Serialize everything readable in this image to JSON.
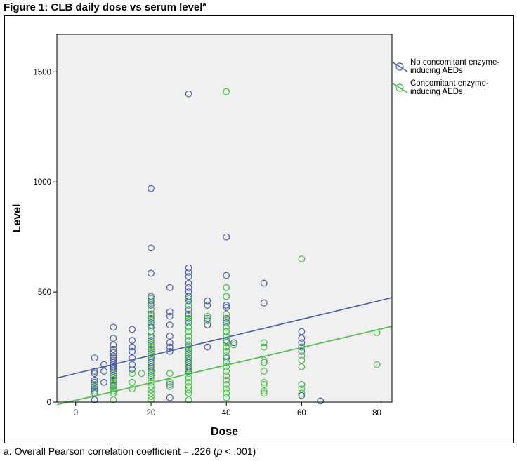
{
  "figure": {
    "title": "Figure 1: CLB daily dose vs serum level",
    "title_sup": "a",
    "footnote_prefix": "a. Overall Pearson correlation coefficient = .226 (",
    "footnote_p": "p",
    "footnote_suffix": " < .001)"
  },
  "colors": {
    "series1": "#4a5fa5",
    "series2": "#4cbb4c",
    "plot_bg": "#f0f0f0"
  },
  "chart_data": {
    "type": "scatter",
    "title": "Figure 1: CLB daily dose vs serum level",
    "xlabel": "Dose",
    "ylabel": "Level",
    "xlim": [
      -5,
      84
    ],
    "ylim": [
      0,
      1670
    ],
    "xticks": [
      0,
      20,
      40,
      60,
      80
    ],
    "yticks": [
      0,
      500,
      1000,
      1500
    ],
    "legend_position": "right",
    "series": [
      {
        "name": "No concomitant enzyme-inducing AEDs",
        "legend_lines": [
          "No concomitant enzyme-",
          "inducing AEDs"
        ],
        "color": "#4a5fa5",
        "fit_line": {
          "intercept": 130,
          "slope": 4.1
        },
        "points": [
          [
            5,
            200
          ],
          [
            5,
            140
          ],
          [
            5,
            130
          ],
          [
            5,
            100
          ],
          [
            5,
            90
          ],
          [
            5,
            80
          ],
          [
            5,
            70
          ],
          [
            5,
            60
          ],
          [
            5,
            50
          ],
          [
            5,
            40
          ],
          [
            5,
            10
          ],
          [
            7.5,
            170
          ],
          [
            7.5,
            140
          ],
          [
            7.5,
            90
          ],
          [
            10,
            340
          ],
          [
            10,
            290
          ],
          [
            10,
            260
          ],
          [
            10,
            240
          ],
          [
            10,
            225
          ],
          [
            10,
            210
          ],
          [
            10,
            200
          ],
          [
            10,
            190
          ],
          [
            10,
            180
          ],
          [
            10,
            170
          ],
          [
            10,
            160
          ],
          [
            10,
            150
          ],
          [
            10,
            140
          ],
          [
            10,
            130
          ],
          [
            10,
            120
          ],
          [
            10,
            110
          ],
          [
            10,
            100
          ],
          [
            10,
            90
          ],
          [
            10,
            75
          ],
          [
            10,
            60
          ],
          [
            15,
            330
          ],
          [
            15,
            280
          ],
          [
            15,
            250
          ],
          [
            15,
            230
          ],
          [
            15,
            200
          ],
          [
            15,
            170
          ],
          [
            15,
            150
          ],
          [
            20,
            970
          ],
          [
            20,
            700
          ],
          [
            20,
            585
          ],
          [
            20,
            480
          ],
          [
            20,
            460
          ],
          [
            20,
            440
          ],
          [
            20,
            420
          ],
          [
            20,
            400
          ],
          [
            20,
            380
          ],
          [
            20,
            360
          ],
          [
            20,
            340
          ],
          [
            20,
            320
          ],
          [
            20,
            300
          ],
          [
            20,
            280
          ],
          [
            20,
            260
          ],
          [
            20,
            240
          ],
          [
            20,
            220
          ],
          [
            20,
            200
          ],
          [
            20,
            180
          ],
          [
            20,
            160
          ],
          [
            20,
            140
          ],
          [
            20,
            120
          ],
          [
            25,
            520
          ],
          [
            25,
            410
          ],
          [
            25,
            390
          ],
          [
            25,
            350
          ],
          [
            25,
            300
          ],
          [
            25,
            270
          ],
          [
            25,
            250
          ],
          [
            25,
            230
          ],
          [
            25,
            80
          ],
          [
            25,
            20
          ],
          [
            30,
            1400
          ],
          [
            30,
            610
          ],
          [
            30,
            590
          ],
          [
            30,
            570
          ],
          [
            30,
            540
          ],
          [
            30,
            520
          ],
          [
            30,
            500
          ],
          [
            30,
            480
          ],
          [
            30,
            460
          ],
          [
            30,
            440
          ],
          [
            30,
            420
          ],
          [
            30,
            400
          ],
          [
            30,
            380
          ],
          [
            30,
            360
          ],
          [
            30,
            340
          ],
          [
            30,
            320
          ],
          [
            30,
            300
          ],
          [
            30,
            280
          ],
          [
            30,
            260
          ],
          [
            30,
            240
          ],
          [
            30,
            220
          ],
          [
            30,
            200
          ],
          [
            30,
            180
          ],
          [
            30,
            160
          ],
          [
            30,
            140
          ],
          [
            35,
            460
          ],
          [
            35,
            440
          ],
          [
            35,
            380
          ],
          [
            35,
            350
          ],
          [
            35,
            250
          ],
          [
            40,
            750
          ],
          [
            40,
            575
          ],
          [
            40,
            520
          ],
          [
            40,
            480
          ],
          [
            40,
            440
          ],
          [
            40,
            430
          ],
          [
            40,
            380
          ],
          [
            40,
            360
          ],
          [
            40,
            340
          ],
          [
            40,
            320
          ],
          [
            40,
            300
          ],
          [
            40,
            280
          ],
          [
            40,
            250
          ],
          [
            40,
            200
          ],
          [
            42,
            270
          ],
          [
            50,
            540
          ],
          [
            50,
            450
          ],
          [
            60,
            320
          ],
          [
            60,
            290
          ],
          [
            60,
            270
          ],
          [
            60,
            250
          ],
          [
            60,
            230
          ],
          [
            60,
            80
          ],
          [
            60,
            30
          ],
          [
            65,
            5
          ]
        ]
      },
      {
        "name": "Concomitant enzyme-inducing AEDs",
        "legend_lines": [
          "Concomitant enzyme-",
          "inducing AEDs"
        ],
        "color": "#4cbb4c",
        "fit_line": {
          "intercept": 8,
          "slope": 4.0
        },
        "points": [
          [
            5,
            80
          ],
          [
            5,
            40
          ],
          [
            10,
            130
          ],
          [
            10,
            110
          ],
          [
            10,
            90
          ],
          [
            10,
            80
          ],
          [
            10,
            70
          ],
          [
            10,
            60
          ],
          [
            10,
            50
          ],
          [
            10,
            40
          ],
          [
            10,
            10
          ],
          [
            15,
            130
          ],
          [
            15,
            90
          ],
          [
            15,
            60
          ],
          [
            17.5,
            130
          ],
          [
            20,
            470
          ],
          [
            20,
            450
          ],
          [
            20,
            420
          ],
          [
            20,
            390
          ],
          [
            20,
            370
          ],
          [
            20,
            350
          ],
          [
            20,
            320
          ],
          [
            20,
            290
          ],
          [
            20,
            270
          ],
          [
            20,
            250
          ],
          [
            20,
            230
          ],
          [
            20,
            210
          ],
          [
            20,
            190
          ],
          [
            20,
            170
          ],
          [
            20,
            150
          ],
          [
            20,
            130
          ],
          [
            20,
            110
          ],
          [
            20,
            90
          ],
          [
            20,
            70
          ],
          [
            20,
            55
          ],
          [
            20,
            40
          ],
          [
            20,
            25
          ],
          [
            20,
            10
          ],
          [
            25,
            130
          ],
          [
            25,
            90
          ],
          [
            25,
            70
          ],
          [
            30,
            470
          ],
          [
            30,
            440
          ],
          [
            30,
            390
          ],
          [
            30,
            370
          ],
          [
            30,
            340
          ],
          [
            30,
            320
          ],
          [
            30,
            300
          ],
          [
            30,
            280
          ],
          [
            30,
            250
          ],
          [
            30,
            230
          ],
          [
            30,
            210
          ],
          [
            30,
            190
          ],
          [
            30,
            170
          ],
          [
            30,
            150
          ],
          [
            30,
            130
          ],
          [
            30,
            110
          ],
          [
            30,
            90
          ],
          [
            30,
            70
          ],
          [
            30,
            55
          ],
          [
            30,
            40
          ],
          [
            30,
            10
          ],
          [
            35,
            390
          ],
          [
            35,
            370
          ],
          [
            40,
            1410
          ],
          [
            40,
            520
          ],
          [
            40,
            480
          ],
          [
            40,
            400
          ],
          [
            40,
            370
          ],
          [
            40,
            340
          ],
          [
            40,
            320
          ],
          [
            40,
            300
          ],
          [
            40,
            270
          ],
          [
            40,
            250
          ],
          [
            40,
            230
          ],
          [
            40,
            210
          ],
          [
            40,
            180
          ],
          [
            40,
            160
          ],
          [
            40,
            140
          ],
          [
            40,
            120
          ],
          [
            40,
            100
          ],
          [
            40,
            80
          ],
          [
            40,
            60
          ],
          [
            40,
            40
          ],
          [
            40,
            20
          ],
          [
            42,
            260
          ],
          [
            50,
            270
          ],
          [
            50,
            250
          ],
          [
            50,
            190
          ],
          [
            50,
            180
          ],
          [
            50,
            140
          ],
          [
            50,
            90
          ],
          [
            50,
            80
          ],
          [
            50,
            50
          ],
          [
            50,
            40
          ],
          [
            60,
            650
          ],
          [
            60,
            250
          ],
          [
            60,
            210
          ],
          [
            60,
            190
          ],
          [
            60,
            160
          ],
          [
            60,
            80
          ],
          [
            60,
            60
          ],
          [
            60,
            40
          ],
          [
            80,
            315
          ],
          [
            80,
            170
          ]
        ]
      }
    ]
  }
}
